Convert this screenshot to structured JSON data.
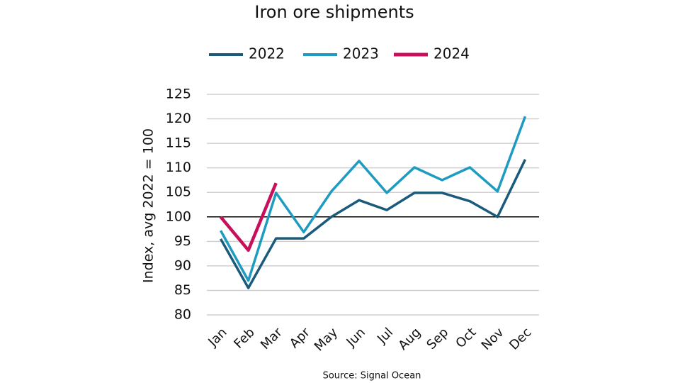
{
  "chart_data": {
    "type": "line",
    "title": "Iron ore shipments",
    "ylabel": "Index, avg 2022 = 100",
    "source": "Source: Signal Ocean",
    "categories": [
      "Jan",
      "Feb",
      "Mar",
      "Apr",
      "May",
      "Jun",
      "Jul",
      "Aug",
      "Sep",
      "Oct",
      "Nov",
      "Dec"
    ],
    "series": [
      {
        "name": "2022",
        "color": "#1a5a7a",
        "values": [
          95.5,
          85.5,
          95.6,
          95.6,
          100,
          103.4,
          101.4,
          104.9,
          104.9,
          103.2,
          100,
          111.7
        ]
      },
      {
        "name": "2023",
        "color": "#1e9bc0",
        "values": [
          97.2,
          87,
          104.9,
          96.9,
          105.2,
          111.4,
          104.9,
          110.1,
          107.5,
          110.1,
          105.2,
          120.5
        ]
      },
      {
        "name": "2024",
        "color": "#c8105a",
        "values": [
          100,
          93.2,
          106.9,
          null,
          null,
          null,
          null,
          null,
          null,
          null,
          null,
          null
        ]
      }
    ],
    "ylim": [
      80,
      125
    ],
    "yticks": [
      80,
      85,
      90,
      95,
      100,
      105,
      110,
      115,
      120,
      125
    ],
    "grid": true,
    "hline": 100,
    "legend": "top"
  }
}
